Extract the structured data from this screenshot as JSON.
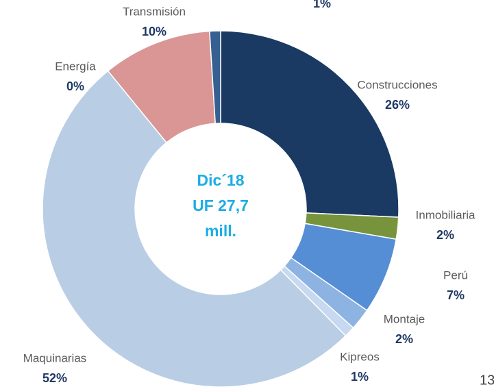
{
  "chart_data": {
    "type": "donut",
    "categories": [
      "Construcciones",
      "Inmobiliaria",
      "Perú",
      "Montaje",
      "Kipreos",
      "Maquinarias",
      "Energía",
      "Transmisión",
      null
    ],
    "values": [
      26,
      2,
      7,
      2,
      1,
      52,
      0,
      10,
      1
    ],
    "value_labels": [
      "26%",
      "2%",
      "7%",
      "2%",
      "1%",
      "52%",
      "0%",
      "10%",
      "1%"
    ],
    "colors": [
      "#1a3a63",
      "#77933c",
      "#558ed5",
      "#8db3e2",
      "#c6d9f1",
      "#b9cde5",
      "#c0504d",
      "#d99694",
      "#376092"
    ],
    "center_text": [
      "Dic´18",
      "UF 27,7",
      "mill."
    ]
  },
  "page_number": "13"
}
